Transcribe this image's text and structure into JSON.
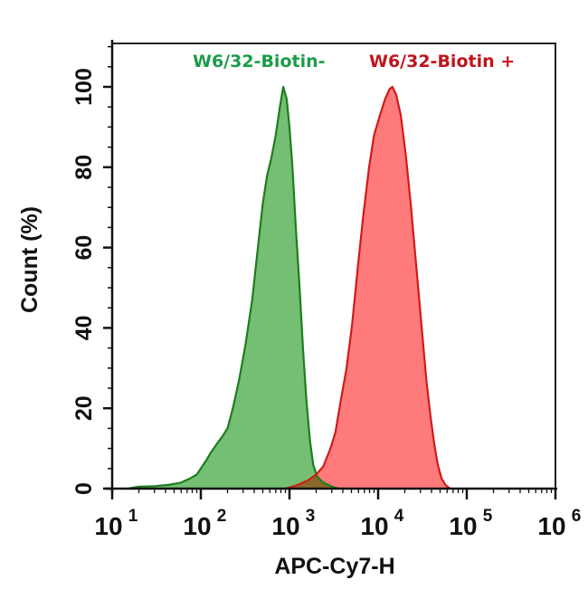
{
  "chart_data": {
    "type": "area",
    "title": "",
    "xlabel": "APC-Cy7-H",
    "ylabel": "Count  (%)",
    "xscale": "log",
    "xlim": [
      10,
      1000000
    ],
    "ylim": [
      0,
      110
    ],
    "x_ticks": [
      {
        "base": "10",
        "exp": "1",
        "value": 10
      },
      {
        "base": "10",
        "exp": "2",
        "value": 100
      },
      {
        "base": "10",
        "exp": "3",
        "value": 1000
      },
      {
        "base": "10",
        "exp": "4",
        "value": 10000
      },
      {
        "base": "10",
        "exp": "5",
        "value": 100000
      },
      {
        "base": "10",
        "exp": "6",
        "value": 1000000
      }
    ],
    "y_ticks": [
      "0",
      "20",
      "40",
      "60",
      "80",
      "100"
    ],
    "grid": false,
    "legend_position": "top-inside",
    "series": [
      {
        "name": "W6/32-Biotin-",
        "fill": "#74bf74",
        "stroke": "#1e7d1e",
        "label_color": "#1a9c4a",
        "points": [
          [
            15,
            0
          ],
          [
            20,
            0.5
          ],
          [
            30,
            0.6
          ],
          [
            45,
            1
          ],
          [
            60,
            1.5
          ],
          [
            75,
            2.5
          ],
          [
            90,
            3.5
          ],
          [
            100,
            5
          ],
          [
            115,
            7
          ],
          [
            130,
            9
          ],
          [
            150,
            11
          ],
          [
            175,
            13
          ],
          [
            200,
            15
          ],
          [
            230,
            20
          ],
          [
            270,
            27
          ],
          [
            320,
            36
          ],
          [
            380,
            47
          ],
          [
            440,
            60
          ],
          [
            500,
            71
          ],
          [
            560,
            78
          ],
          [
            620,
            82
          ],
          [
            700,
            88
          ],
          [
            780,
            95
          ],
          [
            850,
            100
          ],
          [
            930,
            97
          ],
          [
            1000,
            90
          ],
          [
            1080,
            80
          ],
          [
            1180,
            65
          ],
          [
            1300,
            50
          ],
          [
            1420,
            35
          ],
          [
            1550,
            22
          ],
          [
            1700,
            12
          ],
          [
            1850,
            6
          ],
          [
            2050,
            3
          ],
          [
            2400,
            1.5
          ],
          [
            3000,
            0.5
          ],
          [
            3600,
            0
          ]
        ]
      },
      {
        "name": "W6/32-Biotin +",
        "fill": "#ff7b7b",
        "stroke": "#d01a1a",
        "label_color": "#c0141c",
        "points": [
          [
            900,
            0
          ],
          [
            1200,
            0.8
          ],
          [
            1600,
            2
          ],
          [
            2000,
            3.5
          ],
          [
            2400,
            5.5
          ],
          [
            2900,
            10
          ],
          [
            3300,
            14
          ],
          [
            3800,
            22
          ],
          [
            4400,
            30
          ],
          [
            5100,
            41
          ],
          [
            5900,
            55
          ],
          [
            6800,
            68
          ],
          [
            7900,
            80
          ],
          [
            9000,
            88
          ],
          [
            10500,
            93
          ],
          [
            12000,
            97
          ],
          [
            13500,
            99.5
          ],
          [
            14500,
            100
          ],
          [
            16000,
            98
          ],
          [
            18000,
            93
          ],
          [
            20500,
            83
          ],
          [
            23500,
            70
          ],
          [
            27000,
            55
          ],
          [
            31000,
            40
          ],
          [
            35000,
            27
          ],
          [
            39000,
            18
          ],
          [
            43000,
            11
          ],
          [
            47000,
            6
          ],
          [
            52000,
            2.5
          ],
          [
            58000,
            0.8
          ],
          [
            65000,
            0
          ]
        ]
      }
    ],
    "overlap_fill": "#8a6a2a"
  }
}
